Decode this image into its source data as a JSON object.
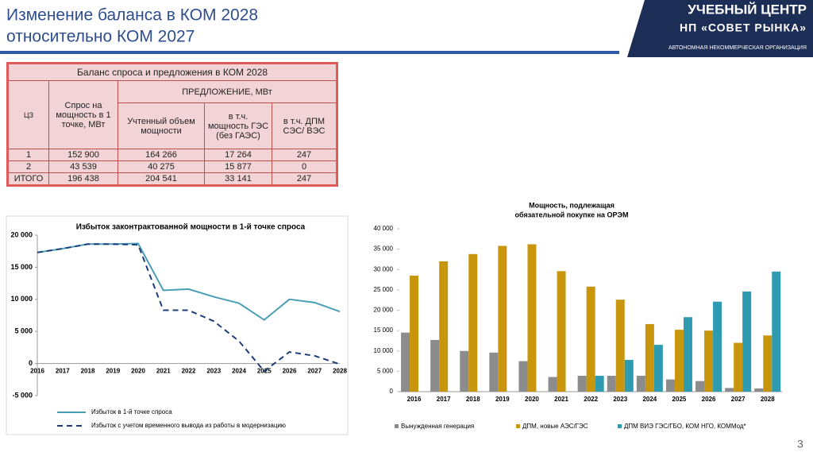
{
  "header": {
    "title_lines": [
      "Изменение баланса в КОМ 2028",
      "относительно КОМ 2027"
    ]
  },
  "logo": {
    "line1": "УЧЕБНЫЙ ЦЕНТР",
    "line2": "НП «СОВЕТ РЫНКА»",
    "line3": "АВТОНОМНАЯ НЕКОММЕРЧЕСКАЯ ОРГАНИЗАЦИЯ"
  },
  "table": {
    "title": "Баланс спроса и предложения в КОМ 2028",
    "zone_header": "ЦЗ",
    "demand_header": "Спрос на мощность в 1 точке, МВт",
    "supply_header": "ПРЕДЛОЖЕНИЕ, МВт",
    "supply_columns": [
      "Учтенный объем мощности",
      "в т.ч. мощность ГЭС (без ГАЭС)",
      "в т.ч. ДПМ СЭС/ ВЭС"
    ],
    "rows": [
      [
        "1",
        "152 900",
        "164 266",
        "17 264",
        "247"
      ],
      [
        "2",
        "43 539",
        "40 275",
        "15 877",
        "0"
      ],
      [
        "ИТОГО",
        "196 438",
        "204 541",
        "33 141",
        "247"
      ]
    ]
  },
  "chart_data": [
    {
      "type": "line",
      "title": "Избыток законтрактованной мощности в 1-й точке спроса",
      "categories": [
        "2016",
        "2017",
        "2018",
        "2019",
        "2020",
        "2021",
        "2022",
        "2023",
        "2024",
        "2025",
        "2026",
        "2027",
        "2028"
      ],
      "ylim": [
        -5000,
        20000
      ],
      "yticks": [
        {
          "value": -5000,
          "label": "-5 000"
        },
        0,
        {
          "value": 5000,
          "label": "5 000"
        },
        {
          "value": 10000,
          "label": "10 000"
        },
        {
          "value": 15000,
          "label": "15 000"
        },
        {
          "value": 20000,
          "label": "20 000"
        }
      ],
      "series": [
        {
          "name": "Избыток в 1-й точке спроса",
          "color": "#4a9fb5",
          "line_style": "solid",
          "values": [
            17300,
            17900,
            18600,
            18600,
            18700,
            11400,
            11600,
            10400,
            9400,
            6800,
            10000,
            9500,
            8100
          ]
        },
        {
          "name": "Избыток с учетом временного вывода из работы в модернизацию",
          "color": "#1f3d7a",
          "line_style": "dashed",
          "values": [
            17300,
            17900,
            18600,
            18600,
            18500,
            8300,
            8300,
            6600,
            3500,
            -1200,
            1800,
            1200,
            -100
          ]
        }
      ]
    },
    {
      "type": "bar",
      "title": [
        "Мощность, подлежащая",
        "обязательной покупке на ОРЭМ"
      ],
      "categories": [
        "2016",
        "2017",
        "2018",
        "2019",
        "2020",
        "2021",
        "2022",
        "2023",
        "2024",
        "2025",
        "2026",
        "2027",
        "2028"
      ],
      "ylim": [
        0,
        40000
      ],
      "yticks": [
        0,
        {
          "value": 5000,
          "label": "5 000"
        },
        {
          "value": 10000,
          "label": "10 000"
        },
        {
          "value": 15000,
          "label": "15 000"
        },
        {
          "value": 20000,
          "label": "20 000"
        },
        {
          "value": 25000,
          "label": "25 000"
        },
        {
          "value": 30000,
          "label": "30 000"
        },
        {
          "value": 35000,
          "label": "35 000"
        },
        {
          "value": 40000,
          "label": "40 000"
        }
      ],
      "series": [
        {
          "name": "Вынужденная генерация",
          "color": "#8c8c8c",
          "values": [
            14500,
            12700,
            10000,
            9600,
            7500,
            3600,
            3900,
            3900,
            3900,
            3000,
            2600,
            900,
            800
          ]
        },
        {
          "name": "ДПМ, новые АЭС/ГЭС",
          "color": "#c8960c",
          "values": [
            28500,
            32000,
            33800,
            35800,
            36200,
            29600,
            25800,
            22600,
            16600,
            15200,
            15000,
            12000,
            13800
          ]
        },
        {
          "name": "ДПМ ВИЭ ГЭС/ГБО, КОМ НГО, КОММод*",
          "color": "#2f9bb0",
          "values": [
            null,
            null,
            null,
            null,
            null,
            null,
            3900,
            7800,
            11500,
            18300,
            22100,
            24600,
            29500
          ]
        }
      ]
    }
  ],
  "page_number": "3"
}
